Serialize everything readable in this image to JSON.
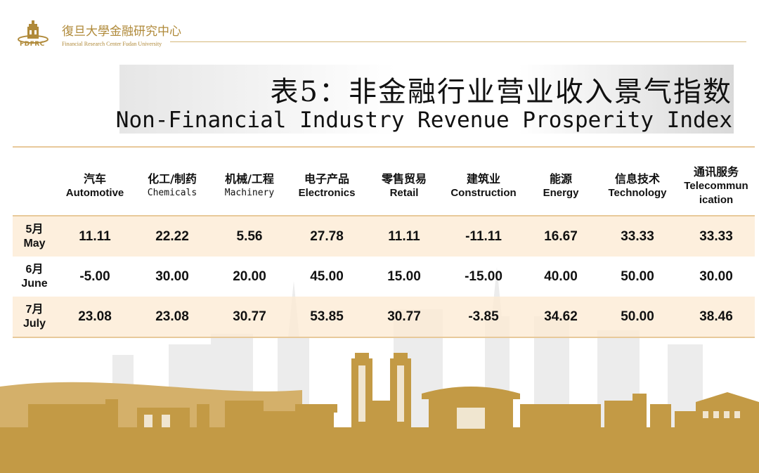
{
  "org": {
    "name_cn": "復旦大學金融研究中心",
    "name_en": "Financial Research Center Fudan University",
    "abbr": "FDFRC"
  },
  "title": {
    "cn": "表5：非金融行业营业收入景气指数",
    "en": "Non-Financial Industry Revenue Prosperity Index"
  },
  "table": {
    "columns": [
      {
        "cn": "汽车",
        "en": "Automotive"
      },
      {
        "cn": "化工/制药",
        "en": "Chemicals"
      },
      {
        "cn": "机械/工程",
        "en": "Machinery"
      },
      {
        "cn": "电子产品",
        "en": "Electronics"
      },
      {
        "cn": "零售贸易",
        "en": "Retail"
      },
      {
        "cn": "建筑业",
        "en": "Construction"
      },
      {
        "cn": "能源",
        "en": "Energy"
      },
      {
        "cn": "信息技术",
        "en": "Technology"
      },
      {
        "cn": "通讯服务",
        "en": "Telecommun ication"
      }
    ],
    "rows": [
      {
        "month_cn": "5月",
        "month_en": "May",
        "values": [
          "11.11",
          "22.22",
          "5.56",
          "27.78",
          "11.11",
          "-11.11",
          "16.67",
          "33.33",
          "33.33"
        ]
      },
      {
        "month_cn": "6月",
        "month_en": "June",
        "values": [
          "-5.00",
          "30.00",
          "20.00",
          "45.00",
          "15.00",
          "-15.00",
          "40.00",
          "50.00",
          "30.00"
        ]
      },
      {
        "month_cn": "7月",
        "month_en": "July",
        "values": [
          "23.08",
          "23.08",
          "30.77",
          "53.85",
          "30.77",
          "-3.85",
          "34.62",
          "50.00",
          "38.46"
        ]
      }
    ]
  },
  "colors": {
    "gold": "#b08a3a",
    "skyline": "#c39a45",
    "row_shade": "#fdebd4",
    "rule": "#e8c99a"
  }
}
